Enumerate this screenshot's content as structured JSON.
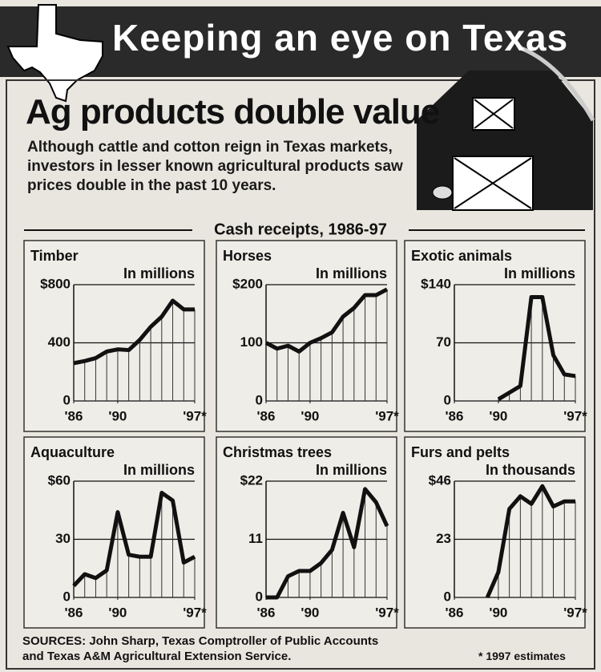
{
  "banner": "Keeping an eye on Texas",
  "headline": "Ag products double value",
  "intro": "Although cattle and cotton reign in Texas markets, investors in lesser known agricultural products saw prices double in the past 10 years.",
  "section_title": "Cash receipts, 1986-97",
  "sources": "SOURCES: John Sharp, Texas Comptroller of Public Accounts and Texas A&M Agricultural Extension Service.",
  "footnote": "* 1997 estimates",
  "chart_data": [
    {
      "type": "line",
      "title": "Timber",
      "subtitle": "In millions",
      "color": "#111",
      "x": [
        1986,
        1987,
        1988,
        1989,
        1990,
        1991,
        1992,
        1993,
        1994,
        1995,
        1996,
        1997
      ],
      "values": [
        260,
        275,
        295,
        340,
        355,
        350,
        420,
        510,
        580,
        690,
        630,
        630
      ],
      "xlim": [
        1986,
        1997
      ],
      "xticks": [
        {
          "value": 1986,
          "label": "'86"
        },
        {
          "value": 1990,
          "label": "'90"
        },
        {
          "value": 1997,
          "label": "'97*"
        }
      ],
      "ylim": [
        0,
        800
      ],
      "yticks": [
        0,
        400,
        {
          "value": 800,
          "label": "$800"
        }
      ],
      "grid": true
    },
    {
      "type": "line",
      "title": "Horses",
      "subtitle": "In millions",
      "color": "#111",
      "x": [
        1986,
        1987,
        1988,
        1989,
        1990,
        1991,
        1992,
        1993,
        1994,
        1995,
        1996,
        1997
      ],
      "values": [
        100,
        90,
        95,
        85,
        100,
        108,
        118,
        145,
        160,
        182,
        182,
        192
      ],
      "xlim": [
        1986,
        1997
      ],
      "xticks": [
        {
          "value": 1986,
          "label": "'86"
        },
        {
          "value": 1990,
          "label": "'90"
        },
        {
          "value": 1997,
          "label": "'97*"
        }
      ],
      "ylim": [
        0,
        200
      ],
      "yticks": [
        0,
        100,
        {
          "value": 200,
          "label": "$200"
        }
      ],
      "grid": true
    },
    {
      "type": "line",
      "title": "Exotic animals",
      "subtitle": "In millions",
      "color": "#111",
      "x": [
        1986,
        1987,
        1988,
        1989,
        1990,
        1991,
        1992,
        1993,
        1994,
        1995,
        1996,
        1997
      ],
      "values": [
        null,
        null,
        null,
        null,
        2,
        10,
        18,
        125,
        125,
        55,
        32,
        30
      ],
      "xlim": [
        1986,
        1997
      ],
      "xticks": [
        {
          "value": 1986,
          "label": "'86"
        },
        {
          "value": 1990,
          "label": "'90"
        },
        {
          "value": 1997,
          "label": "'97*"
        }
      ],
      "ylim": [
        0,
        140
      ],
      "yticks": [
        0,
        70,
        {
          "value": 140,
          "label": "$140"
        }
      ],
      "grid": true
    },
    {
      "type": "line",
      "title": "Aquaculture",
      "subtitle": "In millions",
      "color": "#111",
      "x": [
        1986,
        1987,
        1988,
        1989,
        1990,
        1991,
        1992,
        1993,
        1994,
        1995,
        1996,
        1997
      ],
      "values": [
        6,
        12,
        10,
        14,
        44,
        22,
        21,
        21,
        54,
        50,
        18,
        21
      ],
      "xlim": [
        1986,
        1997
      ],
      "xticks": [
        {
          "value": 1986,
          "label": "'86"
        },
        {
          "value": 1990,
          "label": "'90"
        },
        {
          "value": 1997,
          "label": "'97*"
        }
      ],
      "ylim": [
        0,
        60
      ],
      "yticks": [
        0,
        30,
        {
          "value": 60,
          "label": "$60"
        }
      ],
      "grid": true
    },
    {
      "type": "line",
      "title": "Christmas trees",
      "subtitle": "In millions",
      "color": "#111",
      "x": [
        1986,
        1987,
        1988,
        1989,
        1990,
        1991,
        1992,
        1993,
        1994,
        1995,
        1996,
        1997
      ],
      "values": [
        0,
        0,
        4,
        5,
        5,
        6.5,
        9,
        16,
        9.5,
        20.5,
        18,
        13.5
      ],
      "xlim": [
        1986,
        1997
      ],
      "xticks": [
        {
          "value": 1986,
          "label": "'86"
        },
        {
          "value": 1990,
          "label": "'90"
        },
        {
          "value": 1997,
          "label": "'97*"
        }
      ],
      "ylim": [
        0,
        22
      ],
      "yticks": [
        0,
        11,
        {
          "value": 22,
          "label": "$22"
        }
      ],
      "grid": true
    },
    {
      "type": "line",
      "title": "Furs and pelts",
      "subtitle": "In thousands",
      "color": "#111",
      "x": [
        1986,
        1987,
        1988,
        1989,
        1990,
        1991,
        1992,
        1993,
        1994,
        1995,
        1996,
        1997
      ],
      "values": [
        null,
        null,
        null,
        0,
        10,
        35,
        40,
        37,
        44,
        36,
        38,
        38
      ],
      "xlim": [
        1986,
        1997
      ],
      "xticks": [
        {
          "value": 1986,
          "label": "'86"
        },
        {
          "value": 1990,
          "label": "'90"
        },
        {
          "value": 1997,
          "label": "'97*"
        }
      ],
      "ylim": [
        0,
        46
      ],
      "yticks": [
        0,
        23,
        {
          "value": 46,
          "label": "$46"
        }
      ],
      "grid": true
    }
  ]
}
